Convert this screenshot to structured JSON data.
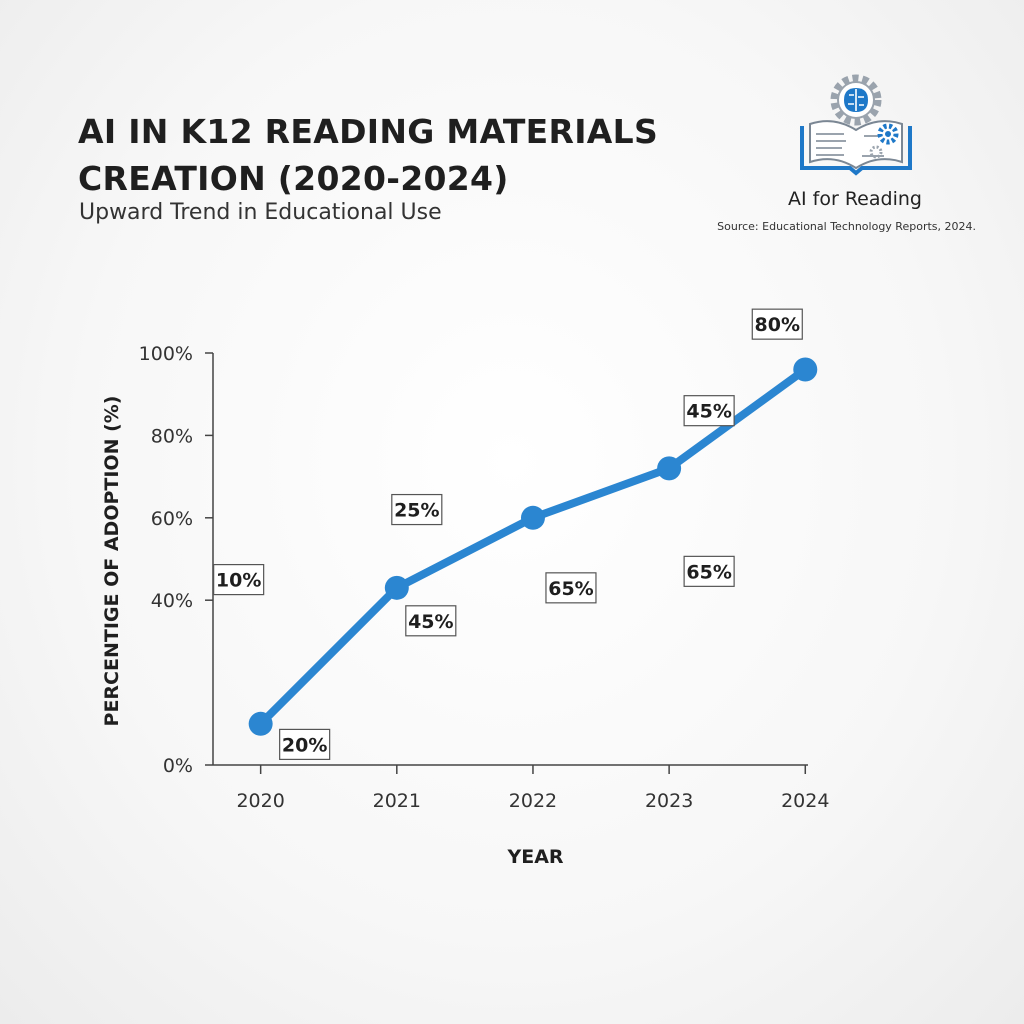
{
  "header": {
    "title": "AI IN K12 READING MATERIALS CREATION (2020-2024)",
    "subtitle": "Upward Trend in Educational Use"
  },
  "brand": {
    "logo_icon": "book-brain-gear-icon",
    "label": "AI for Reading",
    "source": "Source: Educational Technology Reports, 2024."
  },
  "colors": {
    "line": "#2b86d1",
    "axis": "#444444",
    "logo_blue": "#1e78c8",
    "logo_gray": "#9aa3ad"
  },
  "chart_data": {
    "type": "line",
    "x": [
      2020,
      2021,
      2022,
      2023,
      2024
    ],
    "x_tick_labels": [
      "2020",
      "2021",
      "2022",
      "2023",
      "2024"
    ],
    "series": [
      {
        "values": [
          10,
          43,
          60,
          72,
          96
        ]
      }
    ],
    "ylim": [
      0,
      100
    ],
    "y_ticks": [
      0,
      40,
      60,
      80,
      100
    ],
    "y_tick_labels": [
      "0%",
      "40%",
      "60%",
      "80%",
      "100%"
    ],
    "xlabel": "YEAR",
    "ylabel": "PERCENTIGE OF ADOPTION (%)",
    "grid": false,
    "data_labels": [
      {
        "text": "10%",
        "x": 2020,
        "y": 45
      },
      {
        "text": "20%",
        "x": 2020,
        "y": 5
      },
      {
        "text": "25%",
        "x": 2021,
        "y": 62
      },
      {
        "text": "45%",
        "x": 2021,
        "y": 35
      },
      {
        "text": "65%",
        "x": 2022,
        "y": 43
      },
      {
        "text": "65%",
        "x": 2023,
        "y": 47
      },
      {
        "text": "45%",
        "x": 2023,
        "y": 86
      },
      {
        "text": "80%",
        "x": 2024,
        "y": 107
      }
    ]
  }
}
